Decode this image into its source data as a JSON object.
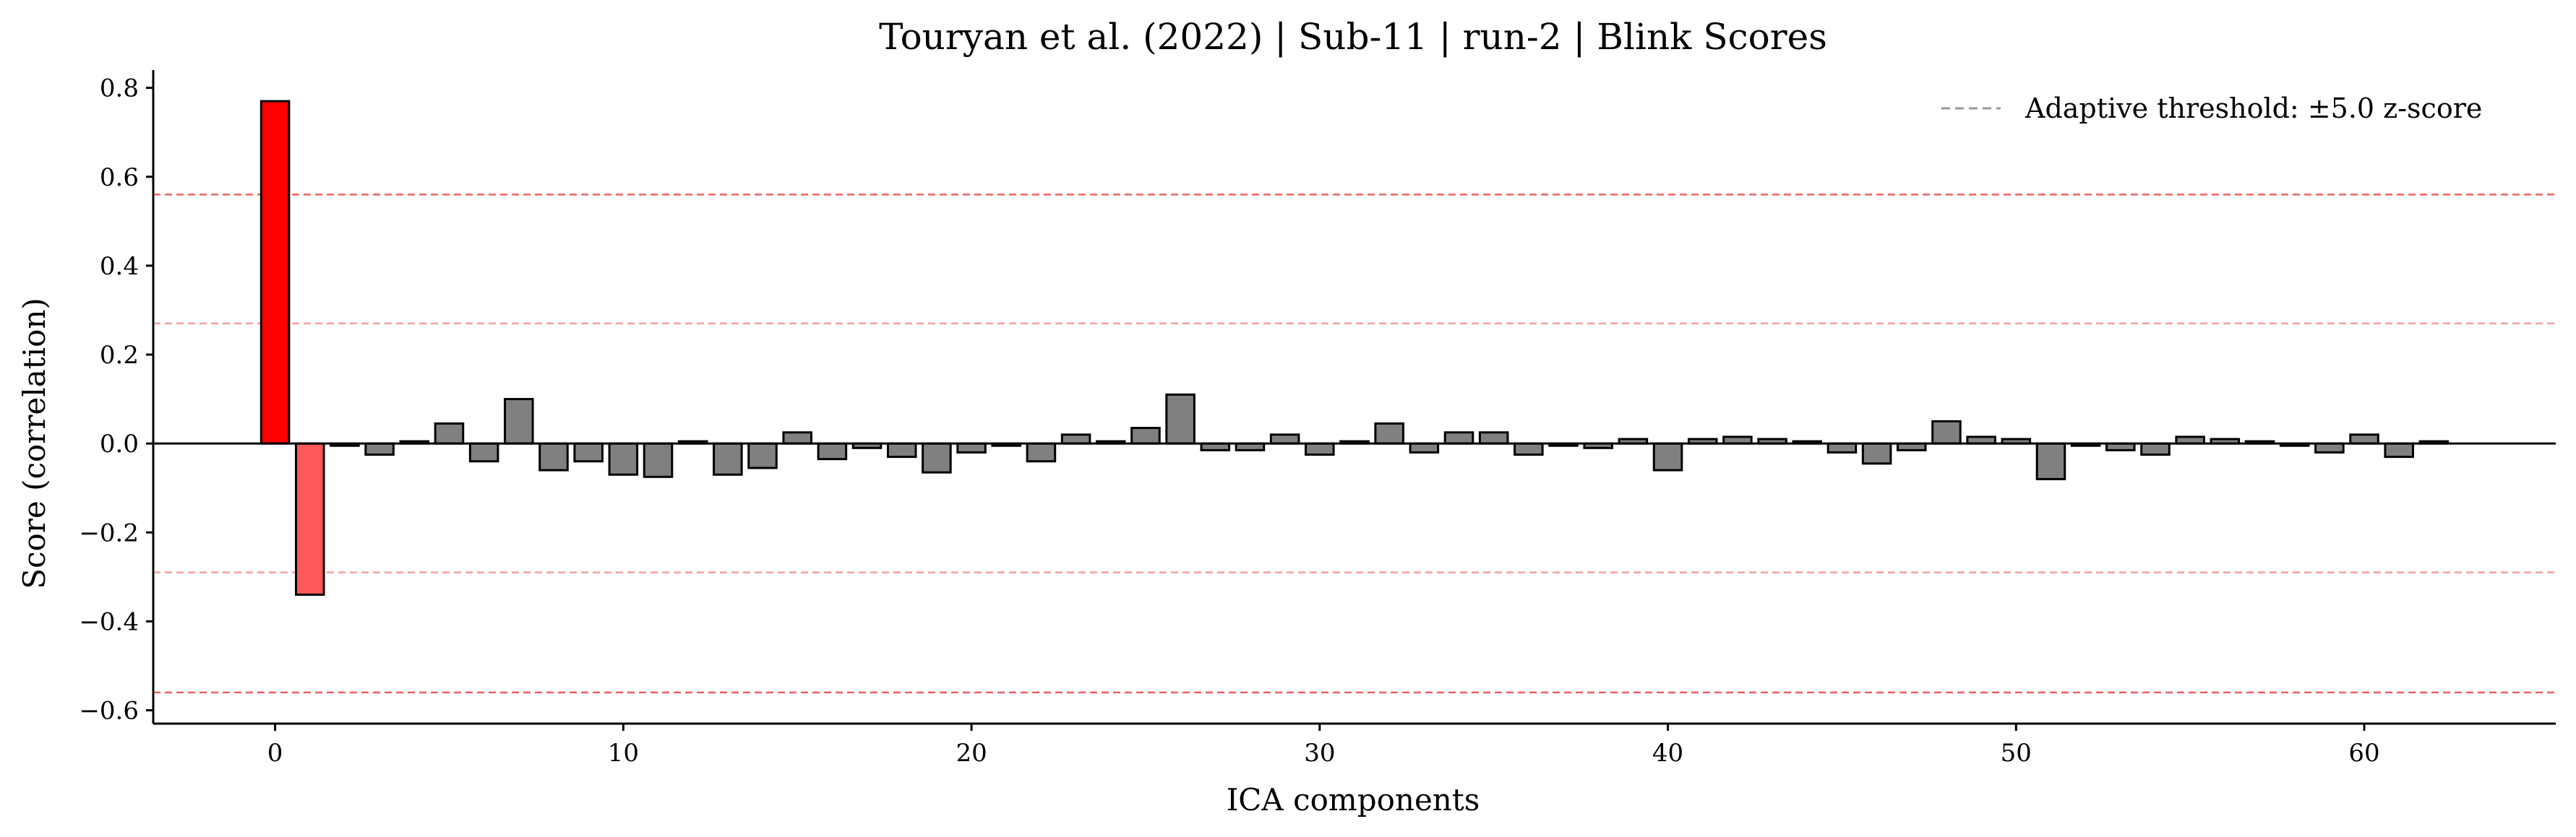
{
  "chart_data": {
    "type": "bar",
    "title": "Touryan et al. (2022) | Sub-11 | run-2 | Blink Scores",
    "xlabel": "ICA components",
    "ylabel": "Score (correlation)",
    "xlim": [
      -3.5,
      65.5
    ],
    "ylim": [
      -0.63,
      0.84
    ],
    "xticks": [
      0,
      10,
      20,
      30,
      40,
      50,
      60
    ],
    "xtick_labels": [
      "0",
      "10",
      "20",
      "30",
      "40",
      "50",
      "60"
    ],
    "yticks": [
      0.8,
      0.6,
      0.4,
      0.2,
      0.0,
      -0.2,
      -0.4,
      -0.6
    ],
    "ytick_labels": [
      "0.8",
      "0.6",
      "0.4",
      "0.2",
      "0.0",
      "−0.2",
      "−0.4",
      "−0.6"
    ],
    "x": [
      0,
      1,
      2,
      3,
      4,
      5,
      6,
      7,
      8,
      9,
      10,
      11,
      12,
      13,
      14,
      15,
      16,
      17,
      18,
      19,
      20,
      21,
      22,
      23,
      24,
      25,
      26,
      27,
      28,
      29,
      30,
      31,
      32,
      33,
      34,
      35,
      36,
      37,
      38,
      39,
      40,
      41,
      42,
      43,
      44,
      45,
      46,
      47,
      48,
      49,
      50,
      51,
      52,
      53,
      54,
      55,
      56,
      57,
      58,
      59,
      60,
      61,
      62
    ],
    "values": [
      0.77,
      -0.34,
      -0.005,
      -0.025,
      0.005,
      0.045,
      -0.04,
      0.1,
      -0.06,
      -0.04,
      -0.07,
      -0.075,
      0.005,
      -0.07,
      -0.055,
      0.025,
      -0.035,
      -0.01,
      -0.03,
      -0.065,
      -0.02,
      -0.005,
      -0.04,
      0.02,
      0.005,
      0.035,
      0.11,
      -0.015,
      -0.015,
      0.02,
      -0.025,
      0.005,
      0.045,
      -0.02,
      0.025,
      0.025,
      -0.025,
      -0.005,
      -0.01,
      0.01,
      -0.06,
      0.01,
      0.015,
      0.01,
      0.005,
      -0.02,
      -0.045,
      -0.015,
      0.05,
      0.015,
      0.01,
      -0.08,
      -0.005,
      -0.015,
      -0.025,
      0.015,
      0.01,
      0.005,
      -0.005,
      -0.02,
      0.02,
      -0.03,
      0.005
    ],
    "bar_colors": {
      "default": "#808080",
      "flagged_primary": "#ff0000",
      "flagged_secondary": "#ff5a5a",
      "edge": "#000000"
    },
    "flagged": [
      {
        "index": 0,
        "style": "flagged_primary"
      },
      {
        "index": 1,
        "style": "flagged_secondary"
      }
    ],
    "threshold_lines": [
      {
        "value": 0.56,
        "color": "#f06060"
      },
      {
        "value": 0.27,
        "color": "#f5a0a0"
      },
      {
        "value": -0.29,
        "color": "#f5a0a0"
      },
      {
        "value": -0.56,
        "color": "#f06060"
      }
    ],
    "legend": {
      "label": "Adaptive threshold: ±5.0 z-score",
      "line_color": "#999999",
      "placement": "top-right"
    },
    "grid": false
  }
}
